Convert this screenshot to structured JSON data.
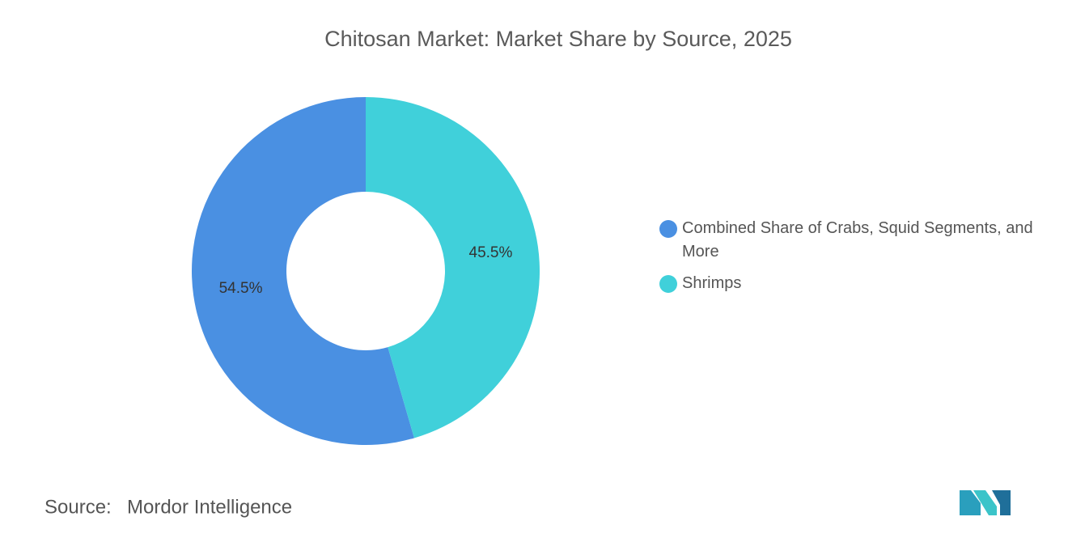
{
  "chart_data": {
    "type": "donut",
    "title": "Chitosan Market: Market Share by Source, 2025",
    "series": [
      {
        "name": "Combined Share of Crabs, Squid Segments, and More",
        "color": "#4a90e2",
        "values": [
          54.5
        ],
        "value_labels": [
          "54.5%"
        ]
      },
      {
        "name": "Shrimps",
        "color": "#40d0da",
        "values": [
          45.5
        ],
        "value_labels": [
          "45.5%"
        ]
      }
    ],
    "source_label": "Source:",
    "source": "Mordor Intelligence"
  }
}
